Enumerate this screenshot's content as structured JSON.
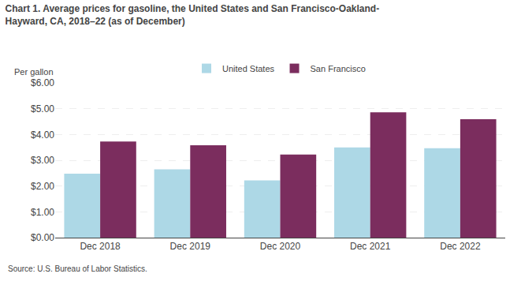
{
  "chart_data": {
    "type": "bar",
    "title": "Chart 1. Average prices for gasoline, the United States and San Francisco-Oakland-\nHayward, CA, 2018–22 (as of December)",
    "ylabel": "Per gallon",
    "source": "Source: U.S. Bureau of Labor Statistics.",
    "categories": [
      "Dec 2018",
      "Dec 2019",
      "Dec 2020",
      "Dec 2021",
      "Dec 2022"
    ],
    "series": [
      {
        "name": "United States",
        "color": "#ADD8E6",
        "values": [
          2.48,
          2.65,
          2.22,
          3.5,
          3.47
        ]
      },
      {
        "name": "San Francisco",
        "color": "#7B2D5E",
        "values": [
          3.73,
          3.58,
          3.22,
          4.86,
          4.59
        ]
      }
    ],
    "ylim": [
      0,
      6.0
    ],
    "yticks": [
      {
        "value": 0.0,
        "label": "$0.00"
      },
      {
        "value": 1.0,
        "label": "$1.00"
      },
      {
        "value": 2.0,
        "label": "$2.00"
      },
      {
        "value": 3.0,
        "label": "$3.00"
      },
      {
        "value": 4.0,
        "label": "$4.00"
      },
      {
        "value": 5.0,
        "label": "$5.00"
      },
      {
        "value": 6.0,
        "label": "$6.00"
      }
    ],
    "grid": true,
    "legend": "top"
  }
}
